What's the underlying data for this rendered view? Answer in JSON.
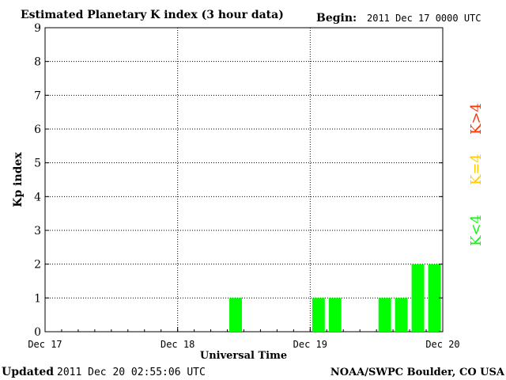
{
  "header": {
    "title": "Estimated Planetary K index (3 hour data)",
    "begin_label": "Begin:",
    "begin_value": "2011 Dec 17 0000 UTC"
  },
  "footer": {
    "updated_label": "Updated",
    "updated_value": "2011 Dec 20 02:55:06 UTC",
    "source": "NOAA/SWPC Boulder, CO USA"
  },
  "legend": {
    "high": "K>4",
    "mid": "K=4",
    "low": "K<4"
  },
  "colors": {
    "background": "#ffffff",
    "axes": "#000000",
    "grid": "#000000",
    "k_low": "#00ff00",
    "k_mid": "#ffcc00",
    "k_high": "#ff3300"
  },
  "chart_data": {
    "type": "bar",
    "title": "Estimated Planetary K index (3 hour data)",
    "xlabel": "Universal Time",
    "ylabel": "Kp index",
    "ylim": [
      0,
      9
    ],
    "xlim": [
      "2011-12-17 00:00",
      "2011-12-20 00:00"
    ],
    "x_ticks": [
      "Dec 17",
      "Dec 18",
      "Dec 19",
      "Dec 20"
    ],
    "y_ticks": [
      "0",
      "1",
      "2",
      "3",
      "4",
      "5",
      "6",
      "7",
      "8",
      "9"
    ],
    "grid": "dotted",
    "bar_interval_hours": 3,
    "series": [
      {
        "values": [
          {
            "start": "2011-12-18 09:00",
            "value": 1
          },
          {
            "start": "2011-12-19 00:00",
            "value": 1
          },
          {
            "start": "2011-12-19 03:00",
            "value": 1
          },
          {
            "start": "2011-12-19 12:00",
            "value": 1
          },
          {
            "start": "2011-12-19 15:00",
            "value": 1
          },
          {
            "start": "2011-12-19 18:00",
            "value": 2
          },
          {
            "start": "2011-12-19 21:00",
            "value": 2
          }
        ]
      }
    ]
  }
}
